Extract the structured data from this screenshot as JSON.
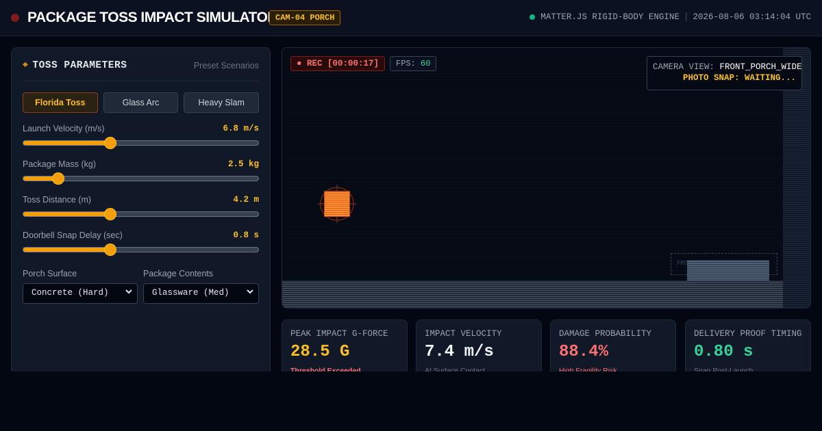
{
  "header": {
    "title": "PACKAGE TOSS IMPACT SIMULATOR",
    "camera_badge": "CAM-04 PORCH",
    "engine": "MATTER.JS RIGID-BODY ENGINE",
    "timestamp": "2026-08-06 03:14:04 UTC"
  },
  "panel": {
    "title": "TOSS PARAMETERS",
    "preset_link": "Preset Scenarios",
    "presets": [
      "Florida Toss",
      "Glass Arc",
      "Heavy Slam"
    ],
    "active_preset": "Florida Toss",
    "sliders": [
      {
        "label": "Launch Velocity (m/s)",
        "value": "6.8 m/s",
        "fraction": 0.37
      },
      {
        "label": "Package Mass (kg)",
        "value": "2.5 kg",
        "fraction": 0.15
      },
      {
        "label": "Toss Distance (m)",
        "value": "4.2 m",
        "fraction": 0.37
      },
      {
        "label": "Doorbell Snap Delay (sec)",
        "value": "0.8 s",
        "fraction": 0.37
      }
    ],
    "porch_surface": {
      "label": "Porch Surface",
      "value": "Concrete (Hard)"
    },
    "package_contents": {
      "label": "Package Contents",
      "value": "Glassware (Med)"
    }
  },
  "viewport": {
    "rec": "● REC [00:00:17]",
    "fps_label": "FPS:",
    "fps_value": "60",
    "camera_view_label": "CAMERA VIEW:",
    "camera_view_value": "FRONT_PORCH_WIDE",
    "photo_snap": "PHOTO SNAP: WAITING...",
    "door_zone_label": "FRONT DOOR"
  },
  "metrics": [
    {
      "label": "PEAK IMPACT G-FORCE",
      "value": "28.5 G",
      "sub": "Threshold Exceeded",
      "color": "#fbbf24",
      "sub_color": "#f87171"
    },
    {
      "label": "IMPACT VELOCITY",
      "value": "7.4 m/s",
      "sub": "At Surface Contact",
      "color": "#f3f4f6",
      "sub_color": "#6b7280"
    },
    {
      "label": "DAMAGE PROBABILITY",
      "value": "88.4%",
      "sub": "High Fragility Risk",
      "color": "#f87171",
      "sub_color": "#f87171"
    },
    {
      "label": "DELIVERY PROOF TIMING",
      "value": "0.80 s",
      "sub": "Snap Post-Launch",
      "color": "#34d399",
      "sub_color": "#6b7280"
    }
  ]
}
